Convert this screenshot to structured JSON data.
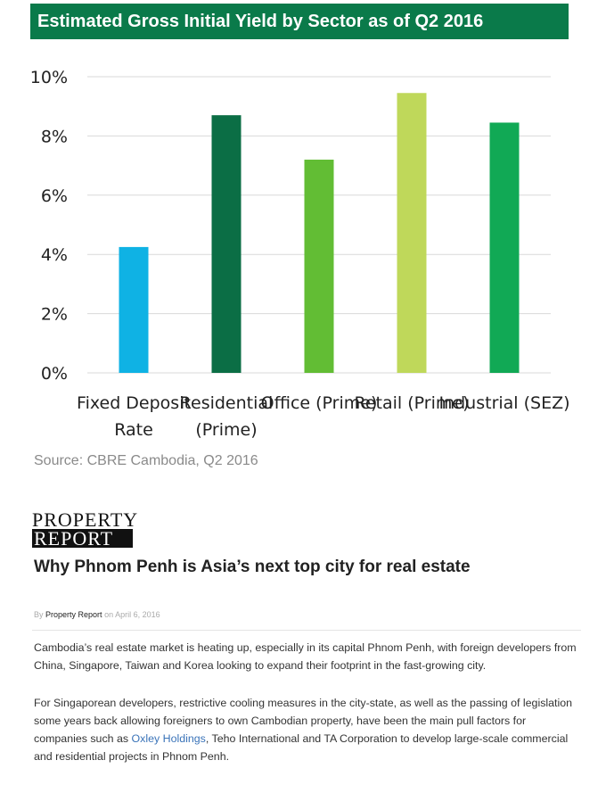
{
  "chart_data": {
    "type": "bar",
    "title": "Estimated Gross Initial Yield by Sector as of Q2 2016",
    "categories": [
      "Fixed Deposit Rate",
      "Residential (Prime)",
      "Office (Prime)",
      "Retail (Prime)",
      "Industrial (SEZ)"
    ],
    "category_lines": [
      [
        "Fixed Deposit",
        "Rate"
      ],
      [
        "Residential",
        "(Prime)"
      ],
      [
        "Office (Prime)"
      ],
      [
        "Retail (Prime)"
      ],
      [
        "Industrial (SEZ)"
      ]
    ],
    "values": [
      4.25,
      8.7,
      7.2,
      9.45,
      8.45
    ],
    "colors": [
      "#0fb2e4",
      "#0b6e45",
      "#62bd34",
      "#bfd85a",
      "#11a955"
    ],
    "yticks": [
      "0%",
      "2%",
      "4%",
      "6%",
      "8%",
      "10%"
    ],
    "ylim": [
      0,
      10
    ],
    "grid": true,
    "legend": "none"
  },
  "source": "Source: CBRE Cambodia, Q2 2016",
  "article": {
    "logo_line1": "PROPERTY",
    "logo_line2": "REPORT",
    "headline": "Why Phnom Penh is Asia’s next top city for real estate",
    "byline_by": "By",
    "byline_author": "Property Report",
    "byline_date": "on April 6, 2016",
    "para1": "Cambodia’s real estate market is heating up, especially in its capital Phnom Penh, with foreign developers from China, Singapore, Taiwan and Korea looking to expand their footprint in the fast-growing city.",
    "para2_before": "For Singaporean developers, restrictive cooling measures in the city-state, as well as the passing of legislation some years back allowing foreigners to own Cambodian property, have been the main pull factors for companies such as",
    "para2_link": "Oxley Holdings",
    "para2_after": ", Teho International and TA Corporation to develop large-scale commercial and residential projects in Phnom Penh."
  }
}
